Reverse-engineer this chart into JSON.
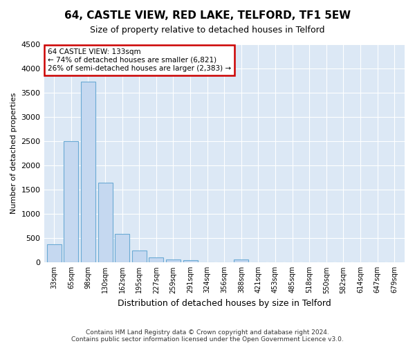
{
  "title": "64, CASTLE VIEW, RED LAKE, TELFORD, TF1 5EW",
  "subtitle": "Size of property relative to detached houses in Telford",
  "xlabel": "Distribution of detached houses by size in Telford",
  "ylabel": "Number of detached properties",
  "categories": [
    "33sqm",
    "65sqm",
    "98sqm",
    "130sqm",
    "162sqm",
    "195sqm",
    "227sqm",
    "259sqm",
    "291sqm",
    "324sqm",
    "356sqm",
    "388sqm",
    "421sqm",
    "453sqm",
    "485sqm",
    "518sqm",
    "550sqm",
    "582sqm",
    "614sqm",
    "647sqm",
    "679sqm"
  ],
  "values": [
    380,
    2500,
    3730,
    1640,
    590,
    240,
    110,
    60,
    50,
    0,
    0,
    60,
    0,
    0,
    0,
    0,
    0,
    0,
    0,
    0,
    0
  ],
  "bar_color": "#c5d8f0",
  "bar_edge_color": "#6aaad4",
  "ylim": [
    0,
    4500
  ],
  "yticks": [
    0,
    500,
    1000,
    1500,
    2000,
    2500,
    3000,
    3500,
    4000,
    4500
  ],
  "annotation_line1": "64 CASTLE VIEW: 133sqm",
  "annotation_line2": "← 74% of detached houses are smaller (6,821)",
  "annotation_line3": "26% of semi-detached houses are larger (2,383) →",
  "annotation_box_color": "#ffffff",
  "annotation_box_edge": "#cc0000",
  "footer": "Contains HM Land Registry data © Crown copyright and database right 2024.\nContains public sector information licensed under the Open Government Licence v3.0.",
  "bg_color": "#ffffff",
  "plot_bg_color": "#dce8f5",
  "grid_color": "#ffffff",
  "title_fontsize": 11,
  "subtitle_fontsize": 9,
  "ylabel_fontsize": 8,
  "xlabel_fontsize": 9,
  "tick_fontsize": 8,
  "xtick_fontsize": 7
}
